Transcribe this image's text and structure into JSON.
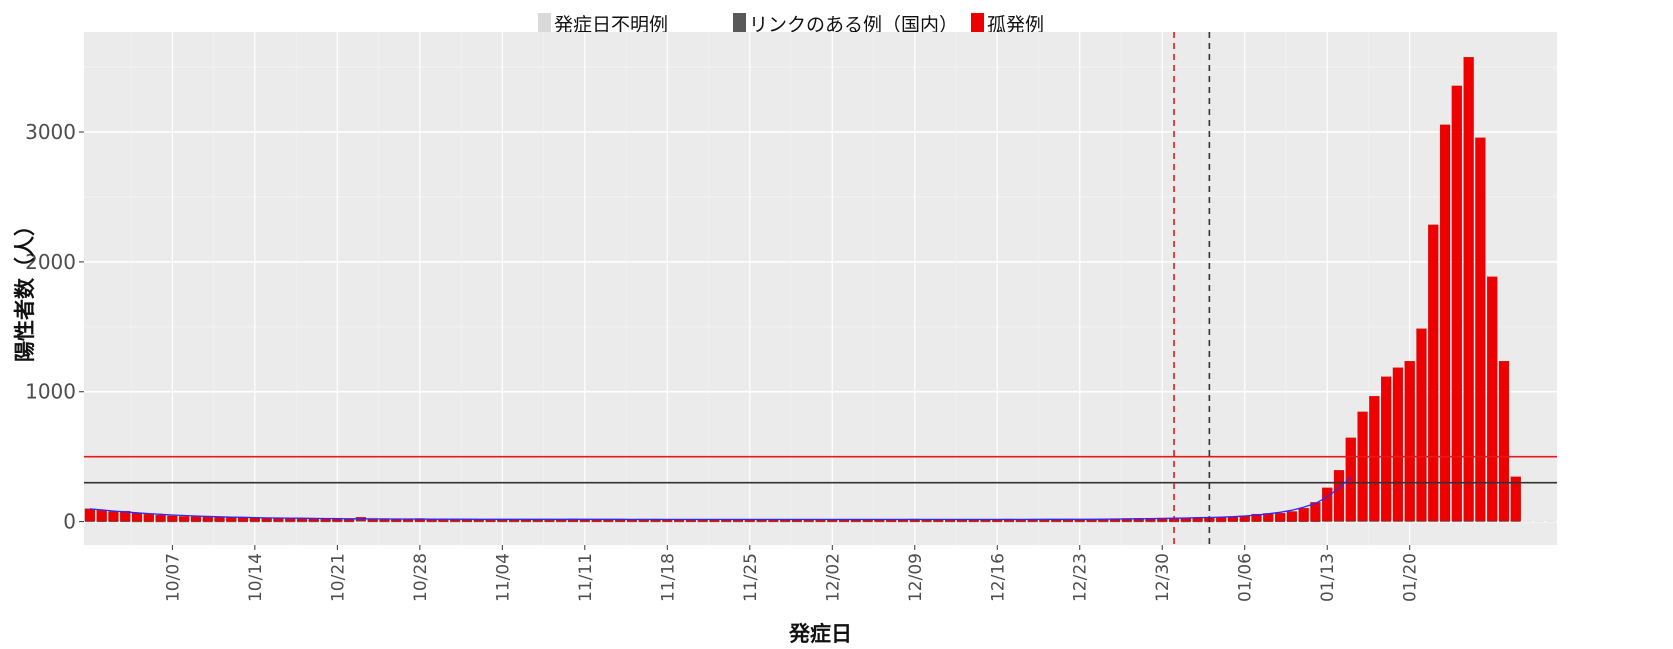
{
  "chart_data": {
    "type": "bar",
    "stacked": true,
    "xlabel": "発症日",
    "ylabel": "陽性者数（人）",
    "ylim": [
      -180,
      3770
    ],
    "y_ticks": [
      0,
      1000,
      2000,
      3000
    ],
    "x_tick_labels": [
      "10/07",
      "10/14",
      "10/21",
      "10/28",
      "11/04",
      "11/11",
      "11/18",
      "11/25",
      "12/02",
      "12/09",
      "12/16",
      "12/23",
      "12/30",
      "01/06",
      "01/13",
      "01/20"
    ],
    "grid": true,
    "legend_position": "top",
    "colors": {
      "unknown": "#d9d9d9",
      "linked": "#595959",
      "isolated": "#ee0000",
      "panel": "#ebebeb",
      "trend": "#2b2bff",
      "ref_red": "#e31a1c",
      "ref_black": "#333333"
    },
    "series": [
      {
        "name": "発症日不明例",
        "key": "unknown"
      },
      {
        "name": "リンクのある例（国内）",
        "key": "linked"
      },
      {
        "name": "孤発例",
        "key": "isolated"
      }
    ],
    "categories_note": "daily onset dates from 09/30 to 01/20",
    "isolated": [
      95,
      85,
      75,
      78,
      65,
      55,
      48,
      42,
      38,
      36,
      38,
      33,
      35,
      32,
      30,
      28,
      27,
      24,
      25,
      22,
      22,
      20,
      18,
      25,
      22,
      20,
      18,
      20,
      22,
      18,
      20,
      18,
      18,
      18,
      18,
      18,
      17,
      18,
      18,
      18,
      18,
      20,
      18,
      17,
      16,
      18,
      17,
      18,
      18,
      16,
      16,
      15,
      16,
      17,
      16,
      17,
      16,
      17,
      17,
      17,
      17,
      16,
      17,
      16,
      17,
      17,
      16,
      17,
      16,
      16,
      18,
      17,
      16,
      17,
      16,
      17,
      16,
      17,
      18,
      17,
      18,
      16,
      18,
      18,
      16,
      18,
      19,
      20,
      22,
      24,
      25,
      26,
      25,
      28,
      28,
      30,
      32,
      35,
      42,
      55,
      60,
      62,
      75,
      100,
      145,
      255,
      390,
      640,
      840,
      960,
      1110,
      1180,
      1230,
      1480,
      2280,
      3050,
      3350,
      3570,
      2950,
      1880,
      1230,
      340,
      0,
      0,
      0
    ],
    "linked": [
      4,
      3,
      3,
      3,
      2,
      2,
      2,
      2,
      2,
      2,
      2,
      2,
      2,
      2,
      2,
      2,
      2,
      2,
      2,
      2,
      2,
      2,
      2,
      8,
      2,
      2,
      2,
      2,
      2,
      2,
      2,
      2,
      2,
      2,
      2,
      2,
      2,
      2,
      2,
      2,
      2,
      2,
      2,
      2,
      2,
      2,
      2,
      2,
      2,
      2,
      2,
      2,
      2,
      2,
      2,
      2,
      2,
      2,
      2,
      2,
      2,
      2,
      2,
      2,
      2,
      2,
      2,
      2,
      2,
      2,
      2,
      2,
      2,
      2,
      2,
      2,
      2,
      2,
      2,
      2,
      2,
      2,
      2,
      2,
      2,
      2,
      2,
      2,
      2,
      2,
      2,
      2,
      2,
      2,
      2,
      2,
      2,
      3,
      3,
      3,
      3,
      3,
      3,
      3,
      3,
      5,
      5,
      5,
      5,
      5,
      5,
      5,
      5,
      5,
      5,
      5,
      5,
      5,
      5,
      5,
      5,
      5,
      0,
      0,
      0
    ],
    "unknown": [
      0,
      0,
      0,
      0,
      0,
      0,
      0,
      0,
      0,
      0,
      0,
      0,
      0,
      0,
      0,
      0,
      0,
      0,
      0,
      0,
      0,
      10,
      0,
      0,
      8,
      0,
      0,
      0,
      0,
      0,
      0,
      0,
      0,
      0,
      0,
      0,
      0,
      0,
      0,
      0,
      0,
      0,
      0,
      0,
      0,
      0,
      0,
      0,
      0,
      0,
      0,
      0,
      0,
      0,
      0,
      0,
      0,
      0,
      0,
      0,
      0,
      0,
      0,
      0,
      0,
      0,
      0,
      0,
      0,
      0,
      0,
      0,
      0,
      0,
      0,
      0,
      0,
      0,
      0,
      0,
      0,
      0,
      0,
      0,
      0,
      0,
      0,
      0,
      0,
      0,
      0,
      0,
      0,
      0,
      0,
      0,
      0,
      0,
      0,
      0,
      0,
      0,
      0,
      0,
      0,
      0,
      0,
      0,
      0,
      0,
      0,
      0,
      0,
      0,
      0,
      0,
      0,
      0,
      0,
      0,
      0,
      0,
      6,
      6,
      6
    ],
    "trend_line": [
      98,
      90,
      82,
      75,
      68,
      62,
      56,
      51,
      47,
      43,
      40,
      37,
      35,
      33,
      31,
      29,
      28,
      27,
      26,
      25,
      24,
      23,
      22,
      22,
      21,
      21,
      20,
      20,
      20,
      19,
      19,
      19,
      19,
      18,
      18,
      18,
      18,
      18,
      18,
      18,
      18,
      18,
      18,
      18,
      18,
      18,
      17,
      17,
      17,
      17,
      17,
      17,
      17,
      17,
      17,
      17,
      17,
      17,
      17,
      17,
      17,
      17,
      17,
      17,
      17,
      17,
      17,
      17,
      17,
      17,
      17,
      17,
      17,
      17,
      17,
      17,
      17,
      17,
      17,
      17,
      17,
      18,
      18,
      18,
      18,
      18,
      19,
      20,
      21,
      22,
      23,
      24,
      26,
      28,
      30,
      32,
      35,
      38,
      43,
      50,
      60,
      72,
      88,
      110,
      140,
      190,
      260,
      340
    ],
    "hlines": [
      {
        "y": 500,
        "color": "ref_red"
      },
      {
        "y": 300,
        "color": "ref_black"
      }
    ],
    "vlines": [
      {
        "x_index": 92.5,
        "color": "ref_red",
        "style": "dashed"
      },
      {
        "x_index": 95.5,
        "color": "ref_black",
        "style": "dashed"
      }
    ]
  }
}
